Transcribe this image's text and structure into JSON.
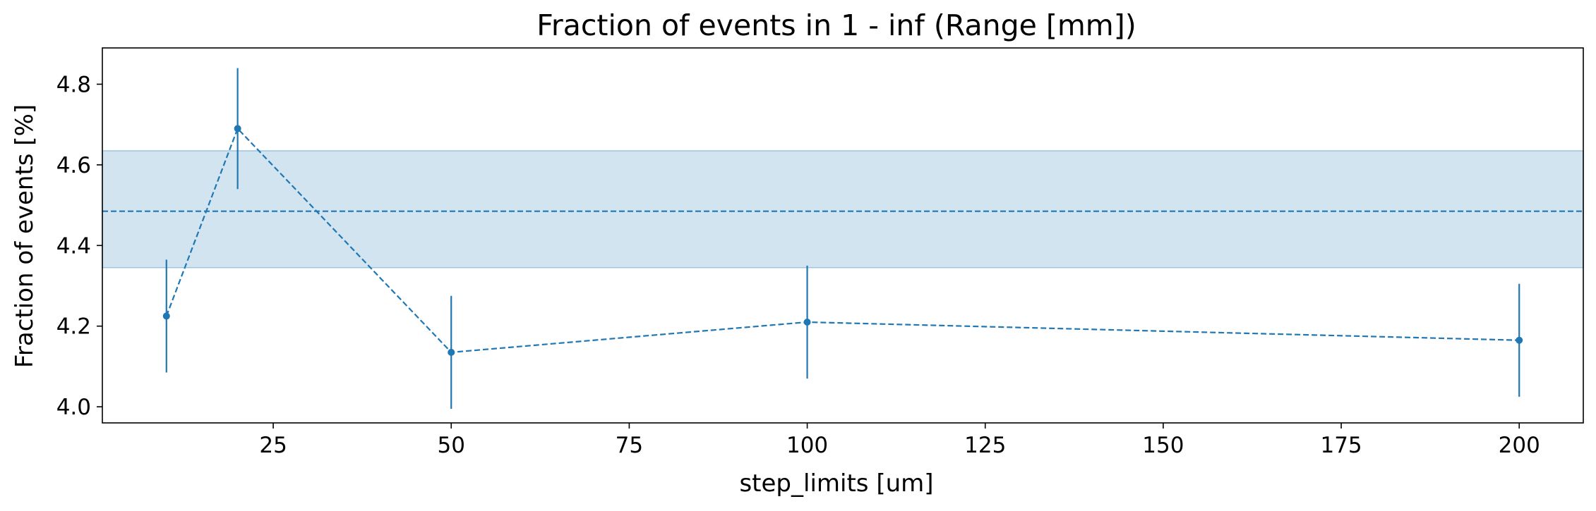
{
  "chart_data": {
    "type": "line",
    "title": "Fraction of events in 1 - inf (Range [mm])",
    "xlabel": "step_limits [um]",
    "ylabel": "Fraction of events [%]",
    "xlim": [
      1,
      209
    ],
    "ylim": [
      3.96,
      4.89
    ],
    "xticks": [
      25,
      50,
      75,
      100,
      125,
      150,
      175,
      200
    ],
    "yticks": [
      4.0,
      4.2,
      4.4,
      4.6,
      4.8
    ],
    "xtick_labels": [
      "25",
      "50",
      "75",
      "100",
      "125",
      "150",
      "175",
      "200"
    ],
    "ytick_labels": [
      "4.0",
      "4.2",
      "4.4",
      "4.6",
      "4.8"
    ],
    "grid": false,
    "series": [
      {
        "x": [
          10,
          20,
          50,
          100,
          200
        ],
        "y": [
          4.225,
          4.69,
          4.135,
          4.21,
          4.165
        ],
        "yerr": [
          0.14,
          0.15,
          0.14,
          0.14,
          0.14
        ],
        "style": "dashed line with markers and vertical error bars",
        "color": "#1f77b4"
      }
    ],
    "mean_line": {
      "y": 4.485,
      "style": "dashed",
      "color": "#1f77b4"
    },
    "band": {
      "y_low": 4.345,
      "y_high": 4.635,
      "color": "#1f77b4",
      "opacity": 0.2
    }
  }
}
